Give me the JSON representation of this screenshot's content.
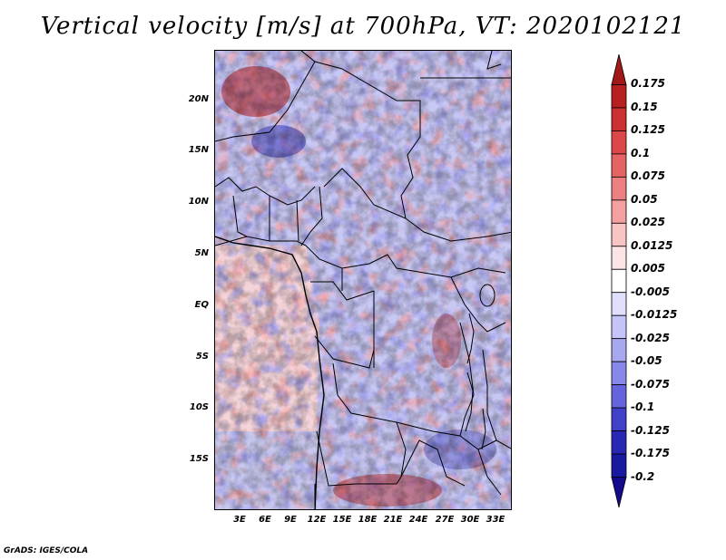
{
  "title": "Vertical velocity [m/s] at 700hPa, VT: 2020102121",
  "credit": "GrADS: IGES/COLA",
  "map": {
    "lat_labels": [
      "20N",
      "15N",
      "10N",
      "5N",
      "EQ",
      "5S",
      "10S",
      "15S"
    ],
    "lon_labels": [
      "3E",
      "6E",
      "9E",
      "12E",
      "15E",
      "18E",
      "21E",
      "24E",
      "27E",
      "30E",
      "33E"
    ]
  },
  "colorbar": {
    "levels": [
      "0.175",
      "0.15",
      "0.125",
      "0.1",
      "0.075",
      "0.05",
      "0.025",
      "0.0125",
      "0.005",
      "-0.005",
      "-0.0125",
      "-0.025",
      "-0.05",
      "-0.075",
      "-0.1",
      "-0.125",
      "-0.175",
      "-0.2"
    ],
    "colors": [
      "#a01818",
      "#b82020",
      "#cc3030",
      "#dc4848",
      "#e46464",
      "#ec8080",
      "#f4a0a0",
      "#f8c4c4",
      "#fce4e4",
      "#ffffff",
      "#e0e0fc",
      "#c4c4f8",
      "#a8a8f0",
      "#8888e8",
      "#6464dc",
      "#4040c8",
      "#2828b4",
      "#1a1aa0",
      "#140a8c"
    ]
  }
}
